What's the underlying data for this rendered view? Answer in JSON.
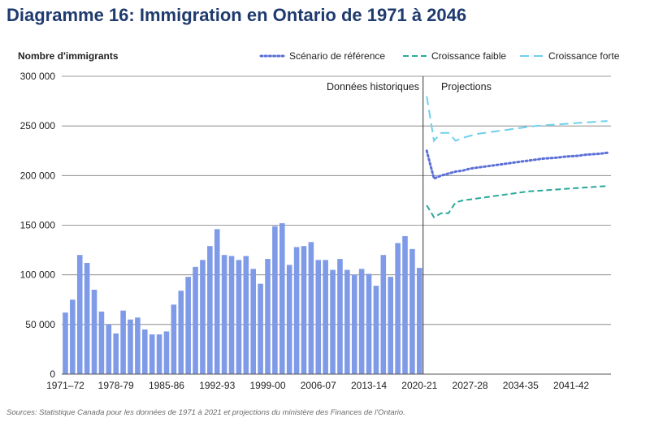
{
  "chart_data": {
    "type": "bar",
    "title": "Diagramme 16: Immigration en Ontario de 1971 à 2046",
    "ylabel": "Nombre d'immigrants",
    "xlabel": "",
    "ylim": [
      0,
      300000
    ],
    "yticks": [
      0,
      50000,
      100000,
      150000,
      200000,
      250000,
      300000
    ],
    "ytick_labels": [
      "0",
      "50 000",
      "100 000",
      "150 000",
      "200 000",
      "250 000",
      "300 000"
    ],
    "xtick_labels": [
      "1971–72",
      "1978-79",
      "1985-86",
      "1992-93",
      "1999-00",
      "2006-07",
      "2013-14",
      "2020-21",
      "2027-28",
      "2034-35",
      "2041-42"
    ],
    "grid": true,
    "legend_position": "top-right",
    "region_labels": {
      "historical": "Données historiques",
      "projections": "Projections"
    },
    "source": "Sources: Statistique Canada pour les données de 1971 à 2021 et projections du ministère des Finances de l'Ontario.",
    "historical": {
      "name": "Données historiques",
      "color": "#7f9be8",
      "start_year": "1971–72",
      "values": [
        62000,
        75000,
        120000,
        112000,
        85000,
        63000,
        50000,
        41000,
        64000,
        55000,
        57000,
        45000,
        40000,
        40000,
        43000,
        70000,
        84000,
        98000,
        108000,
        115000,
        129000,
        146000,
        120000,
        119000,
        115000,
        119000,
        106000,
        91000,
        116000,
        149000,
        152000,
        110000,
        128000,
        129000,
        133000,
        115000,
        115000,
        105000,
        116000,
        105000,
        100000,
        106000,
        101000,
        89000,
        120000,
        98000,
        132000,
        139000,
        126000,
        107000
      ]
    },
    "series": [
      {
        "name": "Scénario de référence",
        "color": "#5b6fd6",
        "style": "dotted",
        "values": [
          225000,
          197000,
          200000,
          202000,
          204000,
          205000,
          207000,
          208000,
          209000,
          210000,
          211000,
          212000,
          213000,
          214000,
          215000,
          216000,
          217000,
          217500,
          218000,
          219000,
          219500,
          220000,
          221000,
          221500,
          222000,
          223000
        ]
      },
      {
        "name": "Croissance faible",
        "color": "#2aa89c",
        "style": "dash",
        "values": [
          170000,
          158000,
          162000,
          162000,
          173000,
          175000,
          176000,
          177000,
          178000,
          179000,
          180000,
          181000,
          182000,
          183000,
          184000,
          184500,
          185000,
          185500,
          186000,
          186500,
          187000,
          187500,
          188000,
          188500,
          189000,
          189500
        ]
      },
      {
        "name": "Croissance forte",
        "color": "#6fd0ec",
        "style": "longdash",
        "values": [
          280000,
          235000,
          243000,
          243000,
          235000,
          238000,
          240000,
          242000,
          243000,
          244000,
          245000,
          246000,
          247000,
          248000,
          249000,
          250000,
          250500,
          251000,
          251500,
          252000,
          252500,
          253000,
          253500,
          254000,
          254500,
          255000
        ]
      }
    ]
  }
}
